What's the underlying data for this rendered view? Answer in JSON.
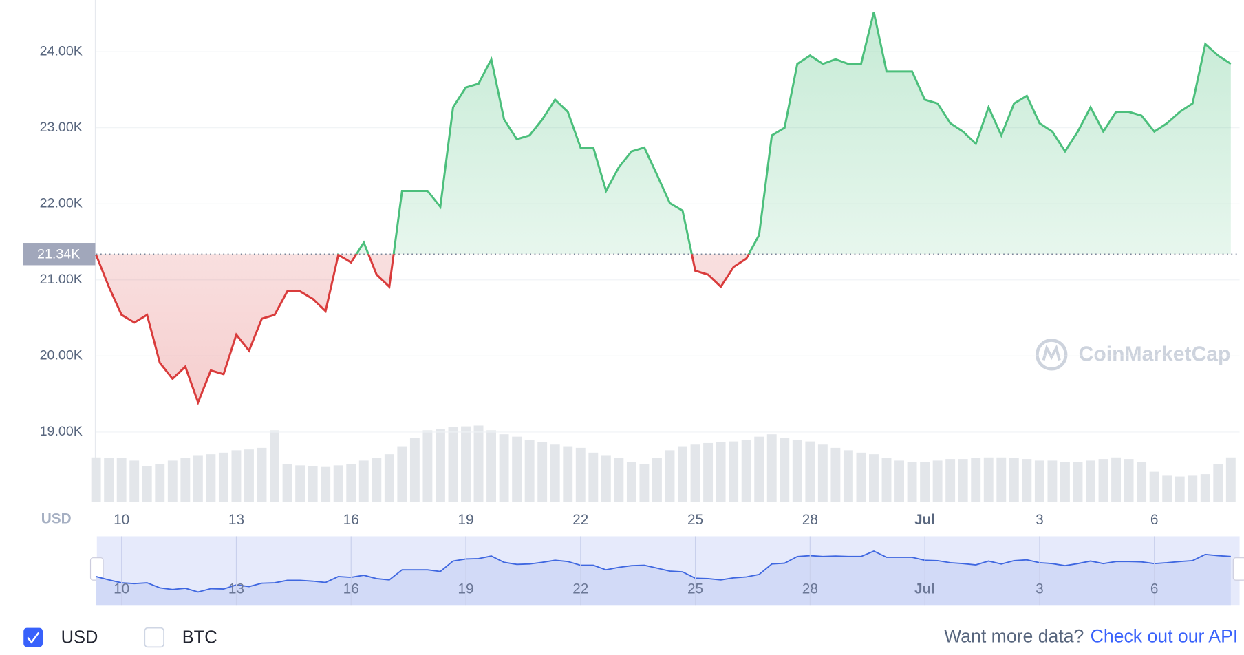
{
  "chart_data": {
    "type": "line",
    "categories": [
      null,
      null,
      "10",
      null,
      null,
      null,
      null,
      null,
      null,
      null,
      null,
      "13",
      null,
      null,
      null,
      null,
      null,
      null,
      null,
      null,
      "16",
      null,
      null,
      null,
      null,
      null,
      null,
      null,
      null,
      "19",
      null,
      null,
      null,
      null,
      null,
      null,
      null,
      null,
      "22",
      null,
      null,
      null,
      null,
      null,
      null,
      null,
      null,
      "25",
      null,
      null,
      null,
      null,
      null,
      null,
      null,
      null,
      "28",
      null,
      null,
      null,
      null,
      null,
      null,
      null,
      null,
      "Jul",
      null,
      null,
      null,
      null,
      null,
      null,
      null,
      null,
      "3",
      null,
      null,
      null,
      null,
      null,
      null,
      null,
      null,
      "6",
      null,
      null,
      null,
      null,
      null,
      null
    ],
    "series": [
      {
        "name": "USD",
        "values": [
          21330,
          20910,
          20540,
          20440,
          20540,
          19910,
          19700,
          19860,
          19390,
          19810,
          19760,
          20280,
          20070,
          20490,
          20540,
          20850,
          20850,
          20750,
          20590,
          21330,
          21230,
          21490,
          21070,
          20910,
          22170,
          22170,
          22170,
          21960,
          23270,
          23530,
          23580,
          23900,
          23110,
          22850,
          22900,
          23110,
          23370,
          23210,
          22740,
          22740,
          22170,
          22480,
          22690,
          22740,
          22380,
          22010,
          21910,
          21120,
          21070,
          20910,
          21170,
          21280,
          21590,
          22900,
          23000,
          23840,
          23950,
          23840,
          23900,
          23840,
          23840,
          24520,
          23740,
          23740,
          23740,
          23370,
          23320,
          23060,
          22950,
          22790,
          23270,
          22900,
          23320,
          23420,
          23060,
          22950,
          22690,
          22950,
          23270,
          22950,
          23210,
          23210,
          23160,
          22950,
          23060,
          23210,
          23320,
          24100,
          23950,
          23840
        ]
      }
    ],
    "volume": [
      56,
      55,
      55,
      52,
      45,
      48,
      52,
      55,
      58,
      60,
      62,
      65,
      66,
      68,
      90,
      48,
      46,
      45,
      44,
      46,
      48,
      52,
      55,
      60,
      70,
      80,
      90,
      92,
      94,
      95,
      96,
      90,
      85,
      82,
      78,
      75,
      72,
      70,
      68,
      62,
      58,
      55,
      50,
      48,
      55,
      65,
      70,
      72,
      74,
      75,
      76,
      78,
      82,
      85,
      80,
      78,
      76,
      72,
      68,
      65,
      62,
      60,
      55,
      52,
      50,
      50,
      52,
      54,
      54,
      55,
      56,
      56,
      55,
      54,
      52,
      52,
      50,
      50,
      52,
      54,
      56,
      54,
      50,
      38,
      33,
      32,
      33,
      35,
      48,
      56
    ],
    "vlim": [
      0,
      100
    ],
    "ylim": [
      18080,
      24680
    ],
    "yticks": [
      {
        "value": 19000,
        "label": "19.00K"
      },
      {
        "value": 20000,
        "label": "20.00K"
      },
      {
        "value": 21000,
        "label": "21.00K"
      },
      {
        "value": 22000,
        "label": "22.00K"
      },
      {
        "value": 23000,
        "label": "23.00K"
      },
      {
        "value": 24000,
        "label": "24.00K"
      }
    ],
    "baseline": {
      "value": 21340,
      "label": "21.34K"
    },
    "axis_currency": "USD",
    "up_color": "#4cbf7c",
    "down_color": "#d93c3c",
    "navigator_color": "#3f67e0",
    "grid": true,
    "watermark": "CoinMarketCap"
  },
  "legend": {
    "options": [
      {
        "label": "USD",
        "checked": true
      },
      {
        "label": "BTC",
        "checked": false
      }
    ]
  },
  "footer": {
    "prompt": "Want more data?",
    "link": "Check out our API"
  }
}
